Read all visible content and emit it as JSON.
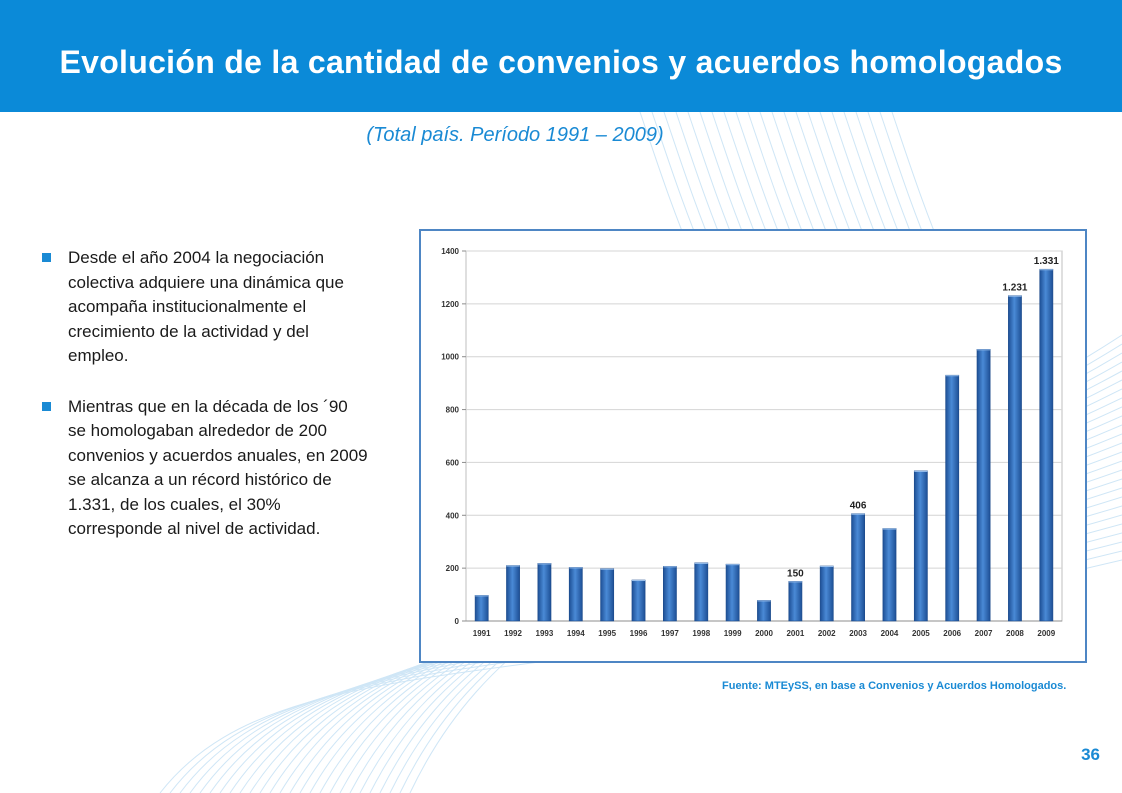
{
  "header": {
    "title": "Evolución de la cantidad de convenios y acuerdos homologados"
  },
  "subtitle": "(Total país. Período 1991 – 2009)",
  "bullets": [
    "Desde el año 2004 la negociación colectiva adquiere una dinámica  que acompaña institucionalmente el crecimiento de la actividad y del empleo.",
    "Mientras que en la década de los ´90 se homologaban alrededor de 200 convenios y acuerdos anuales, en 2009 se alcanza a un récord histórico de 1.331, de los cuales, el 30% corresponde al nivel de actividad."
  ],
  "source": "Fuente: MTEySS,  en base a Convenios y Acuerdos Homologados.",
  "page_number": "36",
  "colors": {
    "header": "#0b8ad8",
    "accent": "#1a8ad4",
    "bar": "#3b78c6",
    "frame": "#4e86c4"
  },
  "chart_data": {
    "type": "bar",
    "categories": [
      "1991",
      "1992",
      "1993",
      "1994",
      "1995",
      "1996",
      "1997",
      "1998",
      "1999",
      "2000",
      "2001",
      "2002",
      "2003",
      "2004",
      "2005",
      "2006",
      "2007",
      "2008",
      "2009"
    ],
    "values": [
      97,
      210,
      218,
      203,
      198,
      155,
      207,
      220,
      215,
      78,
      150,
      208,
      406,
      350,
      568,
      930,
      1028,
      1231,
      1331
    ],
    "data_labels": {
      "10": "150",
      "12": "406",
      "17": "1.231",
      "18": "1.331"
    },
    "ylim": [
      0,
      1400
    ],
    "yticks": [
      0,
      200,
      400,
      600,
      800,
      1000,
      1200,
      1400
    ],
    "title": "",
    "xlabel": "",
    "ylabel": "",
    "grid": true
  }
}
